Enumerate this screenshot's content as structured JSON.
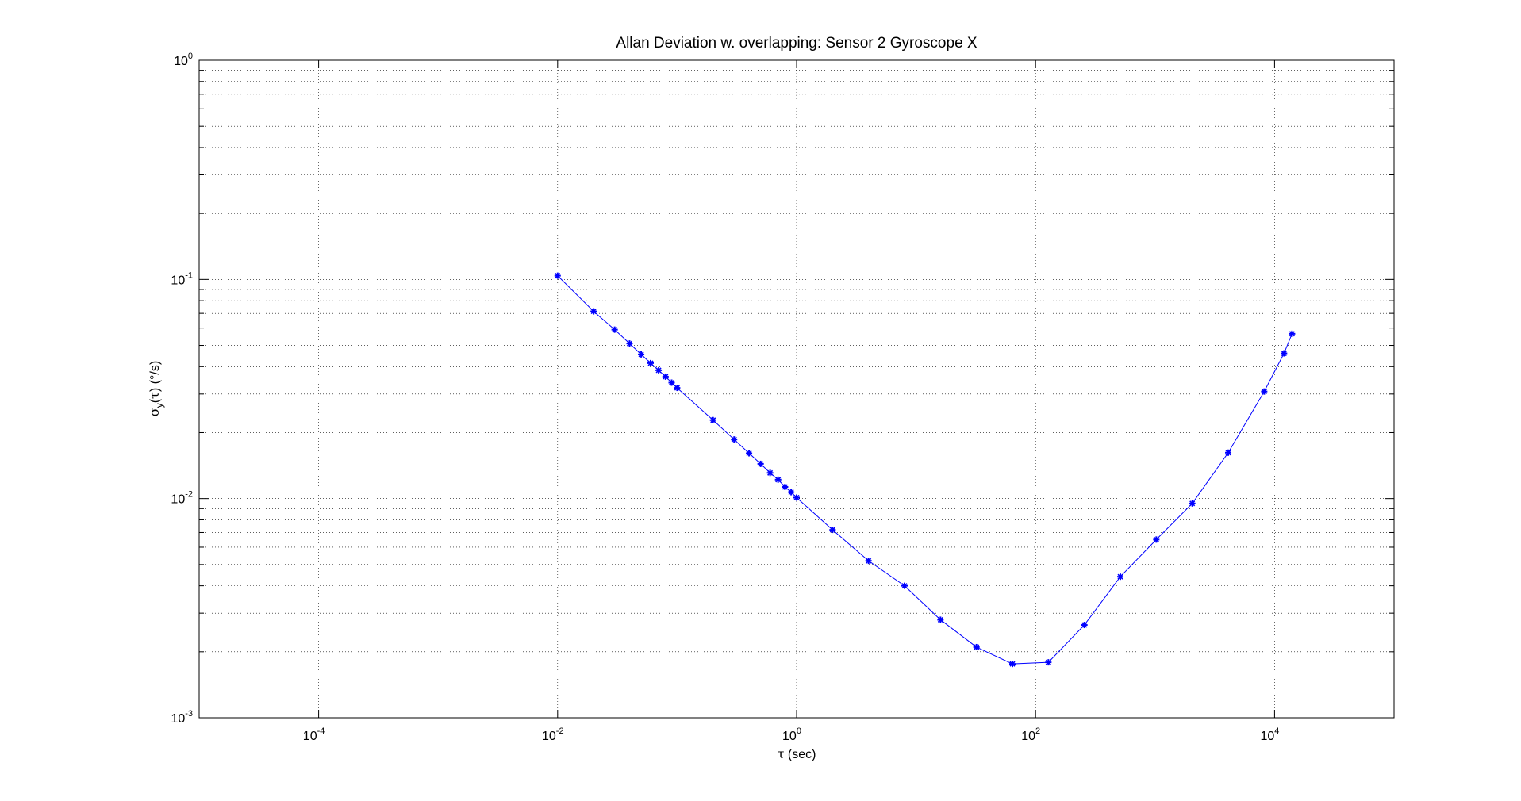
{
  "chart_data": {
    "type": "line",
    "title": "Allan Deviation w. overlapping: Sensor 2 Gyroscope X",
    "xlabel": {
      "symbol": "τ",
      "text": " (sec)"
    },
    "ylabel": {
      "sigma": "σ",
      "sub": "y",
      "open": "(",
      "tau": "τ",
      "close": ")",
      "unit": " (°/s)"
    },
    "x_scale": "log",
    "y_scale": "log",
    "xlim": [
      1e-05,
      100000
    ],
    "ylim": [
      0.001,
      1
    ],
    "grid": true,
    "line_color": "#0000ff",
    "marker": "asterisk",
    "x_ticks": [
      {
        "value": 0.0001,
        "base": "10",
        "exp": "-4"
      },
      {
        "value": 0.01,
        "base": "10",
        "exp": "-2"
      },
      {
        "value": 1,
        "base": "10",
        "exp": "0"
      },
      {
        "value": 100,
        "base": "10",
        "exp": "2"
      },
      {
        "value": 10000,
        "base": "10",
        "exp": "4"
      }
    ],
    "y_ticks": [
      {
        "value": 0.001,
        "base": "10",
        "exp": "-3"
      },
      {
        "value": 0.01,
        "base": "10",
        "exp": "-2"
      },
      {
        "value": 0.1,
        "base": "10",
        "exp": "-1"
      },
      {
        "value": 1,
        "base": "10",
        "exp": "0"
      }
    ],
    "series": [
      {
        "x": [
          0.01,
          0.02,
          0.03,
          0.04,
          0.05,
          0.06,
          0.07,
          0.08,
          0.09,
          0.1,
          0.2,
          0.3,
          0.4,
          0.5,
          0.6,
          0.7,
          0.8,
          0.9,
          1,
          2,
          4,
          8,
          16,
          32,
          64,
          128,
          256,
          512,
          1024,
          2048,
          4096,
          8192,
          12000,
          14000
        ],
        "y": [
          0.104,
          0.0715,
          0.059,
          0.051,
          0.0455,
          0.0415,
          0.0385,
          0.036,
          0.0338,
          0.032,
          0.0228,
          0.0186,
          0.0161,
          0.0144,
          0.0131,
          0.0122,
          0.0113,
          0.0107,
          0.0101,
          0.0072,
          0.0052,
          0.004,
          0.0028,
          0.0021,
          0.00176,
          0.00179,
          0.00265,
          0.0044,
          0.0065,
          0.0095,
          0.0162,
          0.0308,
          0.046,
          0.0565
        ]
      }
    ]
  }
}
